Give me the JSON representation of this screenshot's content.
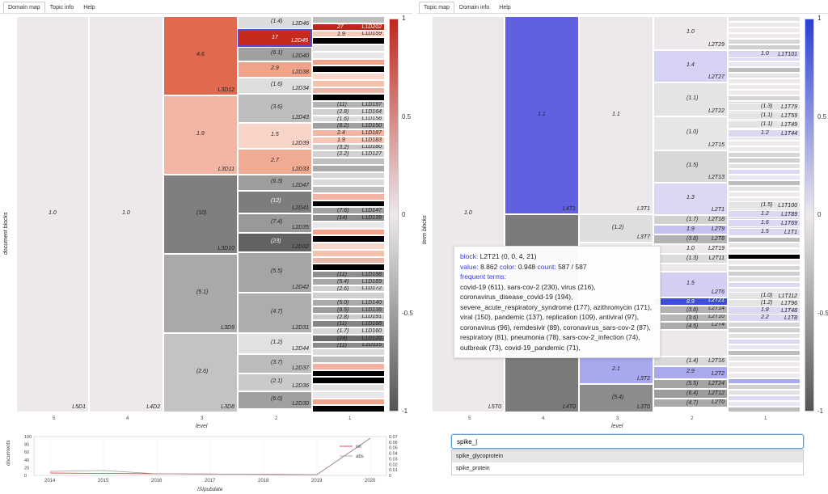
{
  "left_tabs": [
    "Domain map",
    "Topic info",
    "Help"
  ],
  "right_tabs": [
    "Topic map",
    "Domain info",
    "Help"
  ],
  "left": {
    "ylabel": "document blocks",
    "xlabel": "level",
    "levels": [
      "5",
      "4",
      "3",
      "2",
      "1"
    ],
    "col5": {
      "val": "1.0",
      "lab": "L5D1"
    },
    "col4": {
      "val": "1.0",
      "lab": "L4D2"
    },
    "col3": [
      {
        "val": "4.6",
        "lab": "L3D12",
        "color": "#e06a4f",
        "h": 98
      },
      {
        "val": "1.9",
        "lab": "L3D11",
        "color": "#f4b6a4",
        "h": 98
      },
      {
        "val": "(10)",
        "lab": "L3D10",
        "color": "#7f7f7f",
        "h": 98
      },
      {
        "val": "(5.1)",
        "lab": "L3D9",
        "color": "#a9a9a9",
        "h": 98
      },
      {
        "val": "(2.6)",
        "lab": "L3D8",
        "color": "#c3c3c3",
        "h": 98
      }
    ],
    "col2": [
      {
        "val": "(1.4)",
        "lab": "L2D46",
        "color": "#dcdcdc",
        "h": 16
      },
      {
        "val": "17",
        "lab": "L2D45",
        "color": "#c62a1d",
        "h": 22,
        "sel": true
      },
      {
        "val": "(6.1)",
        "lab": "L2D40",
        "color": "#a0a0a0",
        "h": 18
      },
      {
        "val": "2.9",
        "lab": "L2D38",
        "color": "#f0a389",
        "h": 20
      },
      {
        "val": "(1.6)",
        "lab": "L2D34",
        "color": "#dddddd",
        "h": 20
      },
      {
        "val": "(3.6)",
        "lab": "L2D43",
        "color": "#bdbdbd",
        "h": 36
      },
      {
        "val": "1.5",
        "lab": "L2D39",
        "color": "#f7d4c7",
        "h": 32
      },
      {
        "val": "2.7",
        "lab": "L2D33",
        "color": "#f2ab93",
        "h": 32
      },
      {
        "val": "(6.3)",
        "lab": "L2D47",
        "color": "#9e9e9e",
        "h": 20
      },
      {
        "val": "(12)",
        "lab": "L2D41",
        "color": "#7d7d7d",
        "h": 28
      },
      {
        "val": "(7.4)",
        "lab": "L2D35",
        "color": "#999999",
        "h": 24
      },
      {
        "val": "(23)",
        "lab": "L2D32",
        "color": "#626262",
        "h": 24
      },
      {
        "val": "(5.5)",
        "lab": "L2D42",
        "color": "#a5a5a5",
        "h": 50
      },
      {
        "val": "(4.7)",
        "lab": "L2D31",
        "color": "#adadad",
        "h": 50
      },
      {
        "val": "(1.2)",
        "lab": "L2D44",
        "color": "#e1e1e1",
        "h": 26
      },
      {
        "val": "(3.7)",
        "lab": "L2D37",
        "color": "#bbbbbb",
        "h": 24
      },
      {
        "val": "(2.1)",
        "lab": "L2D36",
        "color": "#cacaca",
        "h": 22
      },
      {
        "val": "(6.0)",
        "lab": "L2D30",
        "color": "#a0a0a0",
        "h": 22
      }
    ],
    "col1_labels": [
      {
        "val": "27",
        "lab": "L1D202",
        "row": 1,
        "color": "#c0271c"
      },
      {
        "val": "1.9",
        "lab": "L1D159",
        "row": 2,
        "color": "#f7c9b8"
      },
      {
        "val": "(11)",
        "lab": "L1D197",
        "row": 12,
        "color": "#b3b3b3"
      },
      {
        "val": "(2.8)",
        "lab": "L1D164",
        "row": 13,
        "color": "#d0d0d0"
      },
      {
        "val": "(1.6)",
        "lab": "L1D158",
        "row": 14,
        "color": "#dcdcdc"
      },
      {
        "val": "(8.2)",
        "lab": "L1D150",
        "row": 15,
        "color": "#a0a0a0"
      },
      {
        "val": "2.4",
        "lab": "L1D187",
        "row": 16,
        "color": "#f3b5a2"
      },
      {
        "val": "1.9",
        "lab": "L1D183",
        "row": 17,
        "color": "#f6c7b7"
      },
      {
        "val": "(3.2)",
        "lab": "L1D180",
        "row": 18,
        "color": "#c8c8c8"
      },
      {
        "val": "(2.2)",
        "lab": "L1D127",
        "row": 19,
        "color": "#d2d2d2"
      },
      {
        "val": "(7.6)",
        "lab": "L1D147",
        "row": 27,
        "color": "#a2a2a2"
      },
      {
        "val": "(14)",
        "lab": "L1D139",
        "row": 28,
        "color": "#8a8a8a"
      },
      {
        "val": "(11)",
        "lab": "L1D198",
        "row": 36,
        "color": "#8f8f8f"
      },
      {
        "val": "(5.4)",
        "lab": "L1D189",
        "row": 37,
        "color": "#a8a8a8"
      },
      {
        "val": "(2.6)",
        "lab": "L1D172",
        "row": 38,
        "color": "#cfcfcf"
      },
      {
        "val": "(5.0)",
        "lab": "L1D140",
        "row": 40,
        "color": "#aaaaaa"
      },
      {
        "val": "(6.5)",
        "lab": "L1D136",
        "row": 41,
        "color": "#9d9d9d"
      },
      {
        "val": "(2.8)",
        "lab": "L1D191",
        "row": 42,
        "color": "#cbcbcb"
      },
      {
        "val": "(11)",
        "lab": "L1D168",
        "row": 43,
        "color": "#858585"
      },
      {
        "val": "(1.7)",
        "lab": "L1D160",
        "row": 44,
        "color": "#d8d8d8"
      },
      {
        "val": "(24)",
        "lab": "L1D120",
        "row": 45,
        "color": "#6b6b6b"
      },
      {
        "val": "(11)",
        "lab": "L1D115",
        "row": 46,
        "color": "#8a8a8a"
      }
    ],
    "cbar_ticks": [
      "1",
      "0.5",
      "0",
      "-0.5",
      "-1"
    ]
  },
  "right": {
    "ylabel": "term blocks",
    "xlabel": "level",
    "levels": [
      "5",
      "4",
      "3",
      "2",
      "1"
    ],
    "col5": {
      "val": "1.0",
      "lab": "L5T0"
    },
    "col4": [
      {
        "val": "1.1",
        "lab": "L4T1",
        "color": "#6060e0",
        "h": 245
      },
      {
        "val": "",
        "lab": "L4T0",
        "color": "#7b7b7b",
        "h": 245
      }
    ],
    "col3": [
      {
        "val": "1.1",
        "lab": "L3T1",
        "color": "#ece8ec",
        "h": 245
      },
      {
        "val": "(1.2)",
        "lab": "L3T7",
        "color": "#dedede",
        "h": 35
      },
      {
        "val": "",
        "lab": "",
        "color": "#ece8ec",
        "h": 140
      },
      {
        "val": "2.1",
        "lab": "L3T2",
        "color": "#a8a8ee",
        "h": 35
      },
      {
        "val": "(5.4)",
        "lab": "L3T0",
        "color": "#8c8c8c",
        "h": 35
      }
    ],
    "col2": [
      {
        "val": "1.0",
        "lab": "L2T29",
        "color": "#ece8ec",
        "h": 42
      },
      {
        "val": "1.4",
        "lab": "L2T27",
        "color": "#d6d2f4",
        "h": 40
      },
      {
        "val": "(1.1)",
        "lab": "L2T22",
        "color": "#e4e4e4",
        "h": 42
      },
      {
        "val": "(1.0)",
        "lab": "L2T15",
        "color": "#e6e6e6",
        "h": 42
      },
      {
        "val": "(1.5)",
        "lab": "L2T13",
        "color": "#d8d8d8",
        "h": 40
      },
      {
        "val": "1.3",
        "lab": "L2T1",
        "color": "#dcd8f4",
        "h": 40
      },
      {
        "val": "(1.7)",
        "lab": "L2T18",
        "color": "#d1d1d1",
        "h": 12
      },
      {
        "val": "1.9",
        "lab": "L2T9",
        "color": "#c3c0f2",
        "h": 12
      },
      {
        "val": "(3.8)",
        "lab": "L2T8",
        "color": "#b3b3b3",
        "h": 12
      },
      {
        "val": "1.0",
        "lab": "L2T19",
        "color": "#ece8ec",
        "h": 12
      },
      {
        "val": "(1.3)",
        "lab": "L2T11",
        "color": "#dcdcdc",
        "h": 12
      },
      {
        "val": "",
        "lab": "",
        "color": "#ece8ec",
        "h": 10
      },
      {
        "val": "1.5",
        "lab": "L2T6",
        "color": "#d2cef4",
        "h": 32
      },
      {
        "val": "8.9",
        "lab": "L2T21",
        "color": "#3d4fd8",
        "h": 10
      },
      {
        "val": "(3.8)",
        "lab": "L2T14",
        "color": "#b2b2b2",
        "h": 10
      },
      {
        "val": "(3.6)",
        "lab": "L2T10",
        "color": "#b6b6b6",
        "h": 10
      },
      {
        "val": "(4.5)",
        "lab": "L2T4",
        "color": "#acacac",
        "h": 10
      },
      {
        "val": "",
        "lab": "",
        "color": "#ece8ec",
        "h": 33
      },
      {
        "val": "(1.4)",
        "lab": "L2T16",
        "color": "#d8d8d8",
        "h": 12
      },
      {
        "val": "2.9",
        "lab": "L2T2",
        "color": "#a9a9ee",
        "h": 16
      },
      {
        "val": "(5.5)",
        "lab": "L2T24",
        "color": "#a4a4a4",
        "h": 12
      },
      {
        "val": "(6.4)",
        "lab": "L2T12",
        "color": "#9c9c9c",
        "h": 12
      },
      {
        "val": "(4.7)",
        "lab": "L2T0",
        "color": "#aaaaaa",
        "h": 11
      }
    ],
    "col1_labels": [
      {
        "val": "1.0",
        "lab": "L1T101",
        "y": 42
      },
      {
        "val": "(1.3)",
        "lab": "L1T79",
        "y": 107
      },
      {
        "val": "(1.1)",
        "lab": "L1T59",
        "y": 118
      },
      {
        "val": "(1.1)",
        "lab": "L1T49",
        "y": 129
      },
      {
        "val": "1.2",
        "lab": "L1T44",
        "y": 140
      },
      {
        "val": "(1.5)",
        "lab": "L1T100",
        "y": 229
      },
      {
        "val": "1.2",
        "lab": "L1T89",
        "y": 240
      },
      {
        "val": "1.6",
        "lab": "L1T69",
        "y": 251
      },
      {
        "val": "1.5",
        "lab": "L1T1",
        "y": 262
      },
      {
        "val": "(1.0)",
        "lab": "L1T112",
        "y": 341
      },
      {
        "val": "(1.2)",
        "lab": "L1T96",
        "y": 350
      },
      {
        "val": "1.8",
        "lab": "L1T48",
        "y": 359
      },
      {
        "val": "2.2",
        "lab": "L1T8",
        "y": 368
      }
    ],
    "cbar_ticks": [
      "1",
      "0.5",
      "0",
      "-0.5",
      "-1"
    ]
  },
  "tooltip": {
    "block_label": "block:",
    "block_value": "L2T21 (0, 0, 4, 21)",
    "value_label": "value:",
    "value": "8.862",
    "color_label": "color:",
    "color": "0.948",
    "count_label": "count:",
    "count": "587 / 587",
    "terms_label": "frequent terms:",
    "terms_text": "covid-19 (611), sars-cov-2 (230), virus (216), coronavirus_disease_covid-19 (194), severe_acute_respiratory_syndrome (177), azithromycin (171), viral (150), pandemic (137), replication (109), antiviral (97), coronavirus (96), remdesivir (89), coronavirus_sars-cov-2 (87), respiratory (81), pneumonia (78), sars-cov-2_infection (74), outbreak (73), covid-19_pandemic (71),"
  },
  "search": {
    "value": "spike_|"
  },
  "suggestions": [
    "spike_glycoprotein",
    "spike_protein"
  ],
  "timeline": {
    "ylabel": "documents",
    "xlabel": "ISIpubdate",
    "legend": [
      "rel",
      "abs"
    ],
    "years": [
      "2014",
      "2015",
      "2016",
      "2017",
      "2018",
      "2019",
      "2020"
    ],
    "left_ticks": [
      "100",
      "80",
      "60",
      "40",
      "20",
      "0"
    ],
    "right_ticks": [
      "0.07",
      "0.06",
      "0.05",
      "0.04",
      "0.03",
      "0.02",
      "0.01",
      "0"
    ],
    "rel_color": "#d62728",
    "abs_color": "#999999"
  },
  "colors": {
    "pos_max": "#c0271c",
    "neutral": "#ece8ec",
    "neg_max": "#555555",
    "term_pos_max": "#2a3fd6",
    "selection": "#5b4bd1"
  }
}
